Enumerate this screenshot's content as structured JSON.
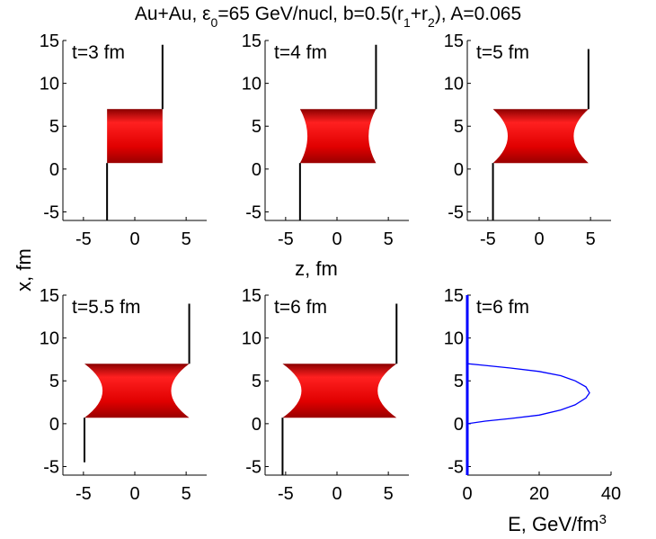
{
  "chart_data": {
    "type": "area",
    "title": "Au+Au, ε₀=65 GeV/nucl, b=0.5(r₁+r₂), A=0.065",
    "title_parts": [
      "Au+Au, ε",
      "0",
      "=65 GeV/nucl, b=0.5(r",
      "1",
      "+r",
      "2",
      "), A=0.065"
    ],
    "xlabel_shared": "z, fm",
    "ylabel_shared": "x, fm",
    "colors": {
      "fill": "#e00000",
      "dark": "#7a0000",
      "line": "#0000ff",
      "axis": "#000000"
    },
    "panels": [
      {
        "label": "t=3 fm",
        "xlim": [
          -7,
          7
        ],
        "ylim": [
          -6,
          15
        ],
        "xticks": [
          "-5",
          "0",
          "5"
        ],
        "yticks": [
          "-5",
          "0",
          "5",
          "10",
          "15"
        ],
        "x_tick_values": [
          -5,
          0,
          5
        ],
        "y_tick_values": [
          -5,
          0,
          5,
          10,
          15
        ],
        "region": {
          "x": [
            -2.7,
            -2.7,
            2.7,
            2.7
          ],
          "y": [
            0.7,
            7.0,
            7.0,
            0.7
          ],
          "shape": "rect"
        },
        "lines": [
          {
            "x": -2.7,
            "y": [
              -6,
              0.7
            ]
          },
          {
            "x": 2.7,
            "y": [
              7.0,
              14.5
            ]
          }
        ]
      },
      {
        "label": "t=4 fm",
        "xlim": [
          -7,
          7
        ],
        "ylim": [
          -6,
          15
        ],
        "xticks": [
          "-5",
          "0",
          "5"
        ],
        "yticks": [
          "-5",
          "0",
          "5",
          "10",
          "15"
        ],
        "x_tick_values": [
          -5,
          0,
          5
        ],
        "y_tick_values": [
          -5,
          0,
          5,
          10,
          15
        ],
        "region": {
          "x_left": -3.6,
          "x_right": 3.8,
          "y_bottom": 0.7,
          "y_top": 7.0,
          "notch": 0.9,
          "shape": "concave"
        },
        "lines": [
          {
            "x": -3.6,
            "y": [
              -6,
              0.7
            ]
          },
          {
            "x": 3.8,
            "y": [
              7.0,
              14.5
            ]
          }
        ]
      },
      {
        "label": "t=5 fm",
        "xlim": [
          -7,
          7
        ],
        "ylim": [
          -6,
          15
        ],
        "xticks": [
          "-5",
          "0",
          "5"
        ],
        "yticks": [
          "-5",
          "0",
          "5",
          "10",
          "15"
        ],
        "x_tick_values": [
          -5,
          0,
          5
        ],
        "y_tick_values": [
          -5,
          0,
          5,
          10,
          15
        ],
        "region": {
          "x_left": -4.5,
          "x_right": 4.8,
          "y_bottom": 0.7,
          "y_top": 7.0,
          "notch": 1.8,
          "shape": "concave"
        },
        "lines": [
          {
            "x": -4.5,
            "y": [
              -6,
              0.7
            ]
          },
          {
            "x": 4.8,
            "y": [
              7.0,
              14.0
            ]
          }
        ]
      },
      {
        "label": "t=5.5 fm",
        "xlim": [
          -7,
          7
        ],
        "ylim": [
          -6,
          15
        ],
        "xticks": [
          "-5",
          "0",
          "5"
        ],
        "yticks": [
          "-5",
          "0",
          "5",
          "10",
          "15"
        ],
        "x_tick_values": [
          -5,
          0,
          5
        ],
        "y_tick_values": [
          -5,
          0,
          5,
          10,
          15
        ],
        "region": {
          "x_left": -4.9,
          "x_right": 5.3,
          "y_bottom": 0.7,
          "y_top": 7.0,
          "notch": 2.2,
          "shape": "concave"
        },
        "lines": [
          {
            "x": -4.9,
            "y": [
              -4.5,
              0.7
            ]
          },
          {
            "x": 5.3,
            "y": [
              7.0,
              14.0
            ]
          }
        ]
      },
      {
        "label": "t=6 fm",
        "xlim": [
          -7,
          7
        ],
        "ylim": [
          -6,
          15
        ],
        "xticks": [
          "-5",
          "0",
          "5"
        ],
        "yticks": [
          "-5",
          "0",
          "5",
          "10",
          "15"
        ],
        "x_tick_values": [
          -5,
          0,
          5
        ],
        "y_tick_values": [
          -5,
          0,
          5,
          10,
          15
        ],
        "region": {
          "x_left": -5.3,
          "x_right": 5.8,
          "y_bottom": 0.7,
          "y_top": 7.0,
          "notch": 2.3,
          "shape": "concave"
        },
        "lines": [
          {
            "x": -5.3,
            "y": [
              -6,
              0.7
            ]
          },
          {
            "x": 5.8,
            "y": [
              7.0,
              14.0
            ]
          }
        ]
      },
      {
        "label": "t=6 fm",
        "type": "line",
        "xlabel": "E, GeV/fm³",
        "xlabel_parts": [
          "E, GeV/fm",
          "3"
        ],
        "xlim": [
          0,
          40
        ],
        "ylim": [
          -6,
          15
        ],
        "xticks": [
          "0",
          "20",
          "40"
        ],
        "yticks": [
          "-5",
          "0",
          "5",
          "10",
          "15"
        ],
        "x_tick_values": [
          0,
          20,
          40
        ],
        "y_tick_values": [
          -5,
          0,
          5,
          10,
          15
        ],
        "curve": {
          "x": [
            0,
            0,
            5,
            12,
            20,
            26,
            30,
            33,
            34,
            33,
            30,
            26,
            20,
            12,
            5,
            0,
            0
          ],
          "y": [
            -6,
            0.0,
            0.3,
            0.6,
            1.0,
            1.6,
            2.2,
            3.0,
            3.6,
            4.3,
            5.0,
            5.6,
            6.1,
            6.5,
            6.8,
            7.0,
            15
          ]
        }
      }
    ]
  }
}
